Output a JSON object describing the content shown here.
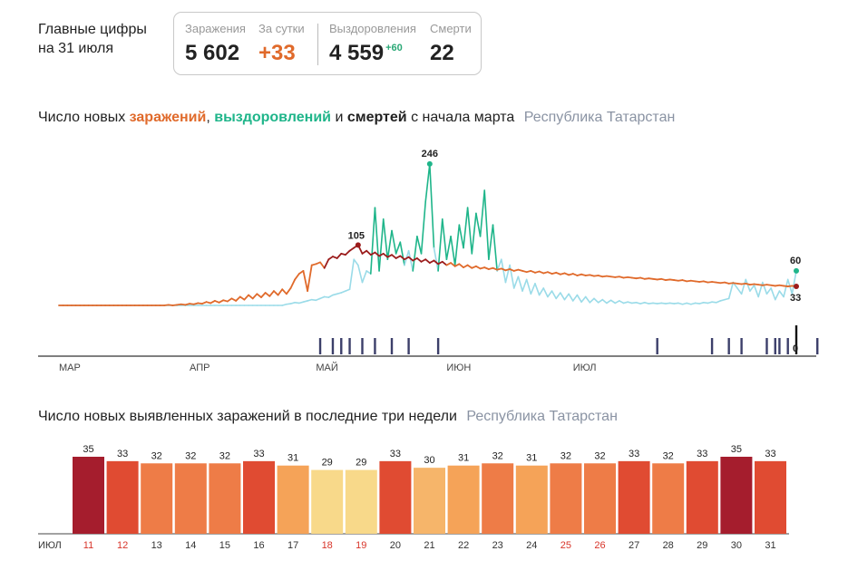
{
  "header": {
    "title_line1": "Главные цифры",
    "title_line2": "на 31 июля"
  },
  "stats": {
    "infections_label": "Заражения",
    "infections_value": "5 602",
    "daily_label": "За сутки",
    "daily_value": "+33",
    "recovered_label": "Выздоровления",
    "recovered_value": "4 559",
    "recovered_delta": "+60",
    "deaths_label": "Смерти",
    "deaths_value": "22"
  },
  "colors": {
    "infections": "#e06a2b",
    "recoveries": "#1fb58a",
    "recoveries_light": "#9adbe8",
    "deaths": "#9b1c1c",
    "death_bars": "#3c3f6a"
  },
  "chart_data": [
    {
      "type": "line",
      "title_parts": {
        "prefix": "Число новых",
        "infections": "заражений",
        "comma": ",",
        "recoveries": "выздоровлений",
        "and": "и",
        "deaths": "смертей",
        "suffix": "с начала марта"
      },
      "region": "Республика Татарстан",
      "x_ticks": [
        "МАР",
        "АПР",
        "МАЙ",
        "ИЮН",
        "ИЮЛ"
      ],
      "ylim": [
        0,
        260
      ],
      "grid": false,
      "annotations": {
        "peak_infections": "105",
        "peak_recoveries": "246",
        "last_recoveries": "60",
        "last_infections": "33",
        "last_deaths": "0"
      },
      "series": [
        {
          "name": "заражений",
          "x_start": "2020-03-01",
          "values": [
            0,
            0,
            0,
            0,
            0,
            0,
            0,
            0,
            0,
            0,
            0,
            0,
            0,
            0,
            0,
            0,
            0,
            0,
            0,
            0,
            0,
            0,
            0,
            0,
            0,
            0,
            1,
            0,
            1,
            2,
            1,
            3,
            2,
            4,
            3,
            6,
            4,
            8,
            5,
            9,
            7,
            12,
            8,
            15,
            10,
            18,
            12,
            20,
            14,
            22,
            16,
            25,
            18,
            28,
            20,
            30,
            45,
            55,
            60,
            25,
            70,
            72,
            75,
            65,
            80,
            85,
            82,
            90,
            88,
            95,
            100,
            105,
            90,
            95,
            88,
            92,
            86,
            90,
            84,
            88,
            82,
            86,
            80,
            84,
            78,
            82,
            76,
            80,
            74,
            78,
            72,
            76,
            70,
            74,
            68,
            72,
            66,
            70,
            65,
            68,
            64,
            66,
            63,
            65,
            62,
            64,
            61,
            63,
            60,
            62,
            60,
            58,
            60,
            57,
            59,
            56,
            58,
            55,
            57,
            54,
            56,
            53,
            55,
            52,
            54,
            52,
            53,
            51,
            52,
            50,
            51,
            50,
            49,
            50,
            48,
            49,
            48,
            47,
            48,
            46,
            47,
            46,
            45,
            46,
            44,
            45,
            44,
            43,
            44,
            42,
            43,
            42,
            41,
            42,
            40,
            41,
            40,
            39,
            40,
            38,
            39,
            38,
            37,
            38,
            36,
            37,
            36,
            35,
            36,
            35,
            34,
            35,
            34,
            33,
            34,
            33
          ]
        },
        {
          "name": "выздоровлений",
          "x_start": "2020-03-01",
          "values": [
            0,
            0,
            0,
            0,
            0,
            0,
            0,
            0,
            0,
            0,
            0,
            0,
            0,
            0,
            0,
            0,
            0,
            0,
            0,
            0,
            0,
            0,
            0,
            0,
            0,
            0,
            0,
            0,
            0,
            0,
            0,
            0,
            0,
            0,
            0,
            0,
            0,
            0,
            0,
            0,
            0,
            0,
            0,
            0,
            0,
            0,
            0,
            0,
            0,
            0,
            0,
            0,
            0,
            0,
            2,
            3,
            5,
            4,
            6,
            8,
            10,
            9,
            12,
            15,
            14,
            18,
            20,
            22,
            25,
            28,
            80,
            70,
            40,
            60,
            55,
            170,
            60,
            150,
            80,
            130,
            90,
            110,
            70,
            95,
            60,
            120,
            90,
            180,
            246,
            100,
            60,
            150,
            80,
            120,
            70,
            140,
            100,
            170,
            90,
            160,
            120,
            200,
            80,
            140,
            60,
            80,
            40,
            70,
            30,
            50,
            25,
            45,
            20,
            38,
            18,
            30,
            15,
            25,
            12,
            22,
            10,
            20,
            8,
            18,
            6,
            15,
            5,
            12,
            5,
            10,
            4,
            9,
            4,
            8,
            4,
            6,
            4,
            5,
            3,
            5,
            3,
            4,
            3,
            4,
            3,
            4,
            3,
            4,
            2,
            4,
            2,
            4,
            3,
            5,
            4,
            6,
            5,
            8,
            10,
            12,
            40,
            30,
            20,
            45,
            25,
            35,
            15,
            40,
            20,
            30,
            10,
            25,
            15,
            45,
            20,
            60
          ]
        },
        {
          "name": "смертей",
          "x_start": "2020-03-01",
          "markers": [
            0,
            0,
            0,
            0,
            0,
            0,
            0,
            0,
            0,
            0,
            0,
            0,
            0,
            0,
            0,
            0,
            0,
            0,
            0,
            0,
            0,
            0,
            0,
            0,
            0,
            0,
            0,
            0,
            0,
            0,
            0,
            0,
            0,
            0,
            0,
            0,
            0,
            0,
            0,
            0,
            0,
            0,
            0,
            0,
            0,
            0,
            0,
            0,
            0,
            0,
            0,
            0,
            0,
            0,
            0,
            0,
            0,
            0,
            0,
            0,
            0,
            0,
            1,
            0,
            0,
            1,
            0,
            1,
            0,
            1,
            0,
            0,
            1,
            0,
            0,
            1,
            0,
            0,
            0,
            1,
            0,
            0,
            0,
            1,
            0,
            0,
            0,
            0,
            0,
            0,
            1,
            0,
            0,
            0,
            0,
            0,
            0,
            0,
            0,
            0,
            0,
            0,
            0,
            0,
            0,
            0,
            0,
            0,
            0,
            0,
            0,
            0,
            0,
            0,
            0,
            0,
            0,
            0,
            0,
            0,
            0,
            0,
            0,
            0,
            0,
            0,
            0,
            0,
            0,
            0,
            0,
            0,
            0,
            0,
            0,
            0,
            0,
            0,
            0,
            0,
            0,
            0,
            1,
            0,
            0,
            0,
            0,
            0,
            0,
            0,
            0,
            0,
            0,
            0,
            0,
            1,
            0,
            0,
            0,
            1,
            0,
            0,
            1,
            0,
            0,
            0,
            0,
            0,
            1,
            0,
            1,
            1,
            0,
            1,
            0,
            2,
            0,
            0,
            0,
            0,
            1,
            0
          ]
        }
      ]
    },
    {
      "type": "bar",
      "title": "Число новых выявленных заражений в последние три недели",
      "region": "Республика Татарстан",
      "month_label": "ИЮЛ",
      "categories": [
        "11",
        "12",
        "13",
        "14",
        "15",
        "16",
        "17",
        "18",
        "19",
        "20",
        "21",
        "22",
        "23",
        "24",
        "25",
        "26",
        "27",
        "28",
        "29",
        "30",
        "31"
      ],
      "weekend_days": [
        "11",
        "12",
        "18",
        "19",
        "25",
        "26"
      ],
      "values": [
        35,
        33,
        32,
        32,
        32,
        33,
        31,
        29,
        29,
        33,
        30,
        31,
        32,
        31,
        32,
        32,
        33,
        32,
        33,
        35,
        33
      ],
      "ylim": [
        0,
        35
      ]
    }
  ]
}
